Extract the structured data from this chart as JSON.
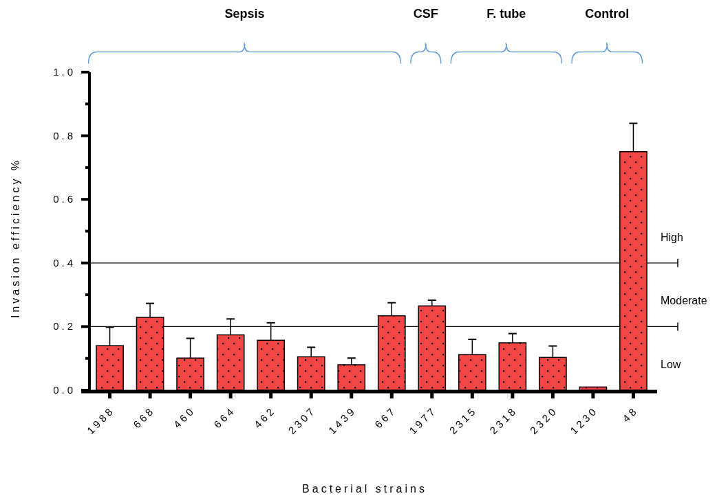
{
  "chart_data": {
    "type": "bar",
    "xlabel": "Bacterial strains",
    "ylabel": "Invasion efficiency %",
    "categories": [
      "1988",
      "668",
      "460",
      "664",
      "462",
      "2307",
      "1439",
      "667",
      "1977",
      "2315",
      "2318",
      "2320",
      "1230",
      "48"
    ],
    "values": [
      0.14,
      0.229,
      0.101,
      0.174,
      0.157,
      0.105,
      0.08,
      0.234,
      0.265,
      0.112,
      0.149,
      0.103,
      0.01,
      0.75
    ],
    "errors": [
      [
        0.14,
        0.198
      ],
      [
        0.229,
        0.273
      ],
      [
        0.101,
        0.163
      ],
      [
        0.174,
        0.224
      ],
      [
        0.157,
        0.212
      ],
      [
        0.105,
        0.135
      ],
      [
        0.08,
        0.101
      ],
      [
        0.234,
        0.275
      ],
      [
        0.265,
        0.283
      ],
      [
        0.112,
        0.16
      ],
      [
        0.149,
        0.178
      ],
      [
        0.103,
        0.139
      ],
      null,
      [
        0.75,
        0.839
      ]
    ],
    "color": "#f54545",
    "ylim": [
      0,
      1.0
    ],
    "yticks": [
      {
        "value": 0,
        "label": "0.0"
      },
      {
        "value": 0.1,
        "label": null
      },
      {
        "value": 0.2,
        "label": "0.2"
      },
      {
        "value": 0.3,
        "label": null
      },
      {
        "value": 0.4,
        "label": "0.4"
      },
      {
        "value": 0.5,
        "label": null
      },
      {
        "value": 0.6,
        "label": "0.6"
      },
      {
        "value": 0.7,
        "label": null
      },
      {
        "value": 0.8,
        "label": "0.8"
      },
      {
        "value": 0.9,
        "label": null
      },
      {
        "value": 1.0,
        "label": "1.0"
      }
    ],
    "ref_lines": [
      {
        "axis": "y",
        "value": 0.2,
        "color": "#000000"
      },
      {
        "axis": "y",
        "value": 0.4,
        "color": "#000000"
      }
    ],
    "annotations": [
      "Sepsis",
      "CSF",
      "F. tube",
      "Control",
      "Low",
      "Moderate",
      "High"
    ],
    "grid": false
  }
}
